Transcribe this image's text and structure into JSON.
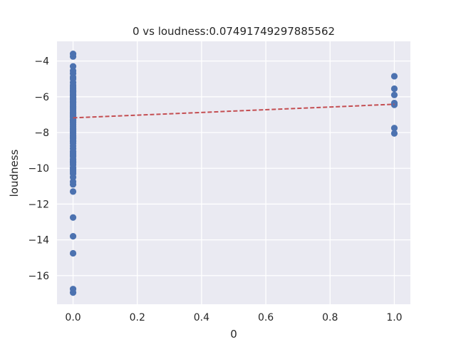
{
  "chart_data": {
    "type": "scatter",
    "title": "0 vs loudness:0.07491749297885562",
    "xlabel": "0",
    "ylabel": "loudness",
    "xlim": [
      -0.05,
      1.05
    ],
    "ylim": [
      -17.6,
      -2.9
    ],
    "xticks": [
      0.0,
      0.2,
      0.4,
      0.6,
      0.8,
      1.0
    ],
    "xtick_labels": [
      "0.0",
      "0.2",
      "0.4",
      "0.6",
      "0.8",
      "1.0"
    ],
    "yticks": [
      -16,
      -14,
      -12,
      -10,
      -8,
      -6,
      -4
    ],
    "ytick_labels": [
      "−16",
      "−14",
      "−12",
      "−10",
      "−8",
      "−6",
      "−4"
    ],
    "grid": true,
    "series": [
      {
        "type": "scatter",
        "color": "#4c72b0",
        "x": [
          0,
          0,
          0,
          0,
          0,
          0,
          0,
          0,
          0,
          0,
          0,
          0,
          0,
          0,
          0,
          0,
          0,
          0,
          0,
          0,
          0,
          0,
          0,
          0,
          0,
          0,
          0,
          0,
          0,
          0,
          0,
          0,
          0,
          0,
          0,
          0,
          0,
          0,
          0,
          0,
          0,
          0,
          0,
          0,
          0,
          0,
          0,
          0,
          0,
          0,
          0,
          0,
          0,
          0,
          0,
          0,
          0,
          0,
          0,
          0,
          0,
          0,
          0,
          0,
          0,
          0,
          0,
          0,
          0,
          0,
          0,
          0,
          0,
          0,
          0,
          0,
          0,
          0,
          0,
          0,
          0,
          0,
          1,
          1,
          1,
          1,
          1,
          1,
          1,
          1
        ],
        "y": [
          -3.6,
          -3.75,
          -4.3,
          -4.55,
          -4.7,
          -4.9,
          -5.2,
          -5.35,
          -5.45,
          -5.55,
          -5.65,
          -5.75,
          -5.85,
          -5.95,
          -6.05,
          -6.15,
          -6.25,
          -6.35,
          -6.45,
          -6.55,
          -6.65,
          -6.75,
          -6.85,
          -6.95,
          -7.05,
          -7.15,
          -7.25,
          -7.35,
          -7.45,
          -7.55,
          -7.65,
          -7.75,
          -7.85,
          -7.95,
          -8.05,
          -8.15,
          -8.25,
          -8.35,
          -8.45,
          -8.6,
          -8.75,
          -8.9,
          -9.05,
          -9.2,
          -9.35,
          -9.5,
          -9.65,
          -9.8,
          -9.95,
          -10.1,
          -10.3,
          -10.5,
          -10.75,
          -10.9,
          -11.3,
          -12.75,
          -13.8,
          -14.75,
          -16.75,
          -16.95,
          -5.0,
          -5.7,
          -6.1,
          -6.6,
          -7.0,
          -7.4,
          -7.8,
          -8.2,
          -8.5,
          -9.1,
          -9.6,
          -10.0,
          -6.3,
          -5.9,
          -7.1,
          -7.3,
          -6.9,
          -8.0,
          -8.3,
          -9.3,
          -9.7,
          -10.2,
          -4.85,
          -5.55,
          -5.9,
          -6.35,
          -6.45,
          -7.75,
          -8.05,
          -6.4
        ]
      },
      {
        "type": "line",
        "style": "dashed",
        "color": "#c44e52",
        "x": [
          0,
          1
        ],
        "y": [
          -7.18,
          -6.42
        ]
      }
    ]
  }
}
